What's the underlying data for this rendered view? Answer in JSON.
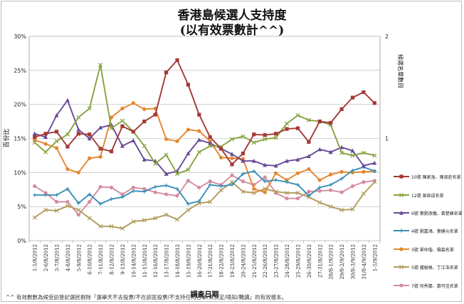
{
  "title": "香港島候選人支持度",
  "subtitle": "(以有效票數計^^)",
  "footnote": "^^ 有效數數為候受訪登記選民剔除「選舉天不去投票/不在該區投票/不支持任何名單/未決定/唔知/難講」的有效樣本。",
  "chart_data": {
    "type": "line",
    "title": "香港島候選人支持度",
    "subtitle": "(以有效票數計^^)",
    "xlabel": "調查日期",
    "ylabel": "百份比",
    "ylabel_right": "候選名單數目",
    "ylim": [
      0,
      30
    ],
    "yticks": [
      "0%",
      "5%",
      "10%",
      "15%",
      "20%",
      "25%",
      "30%"
    ],
    "ylim_right": [
      0,
      2
    ],
    "yticks_right": [
      "0",
      "1",
      "2"
    ],
    "grid": true,
    "legend_position": "right",
    "categories": [
      "1-5/8/2012",
      "2-6/8/2012",
      "3-7/8/2012",
      "4-8/8/2012",
      "5-9/8/2012",
      "6-10/8/2012",
      "7-11/8/2012",
      "8-12/8/2012",
      "9-13/8/2012",
      "10-14/8/2012",
      "11-15/8/2012",
      "12-16/8/2012",
      "13-17/8/2012",
      "14-18/8/2012",
      "15-19/8/2012",
      "16-20/8/2012",
      "17-21/8/2012",
      "18-22/8/2012",
      "19-23/8/2012",
      "20-24/8/2012",
      "21-25/8/2012",
      "22-26/8/2012",
      "23-27/8/2012",
      "24-28/8/2012",
      "25-29/8/2012",
      "26-30/8/2012",
      "27-31/8/2012",
      "28/8-1/9/2012",
      "29/8-2/9/2012",
      "30/8-3/9/2012",
      "31/8-4/9/2012",
      "1-5/9/2012"
    ],
    "x_labels_shown": [
      "1-5/8/2012",
      "2-6/8/2012",
      "3-7/8/2012",
      "4-8/8/2012",
      "5-9/8/2012",
      "6-10/8/2012",
      "7-11/8/2012",
      "8-12/8/2012",
      "9-13/8/2012",
      "10-14/8/2012",
      "11-15/8/2012",
      "12-16/8/2012",
      "13-17/8/2012",
      "14-18/8/2012",
      "15-19/8/2012",
      "16-20/8/2012",
      "17-21/8/2012",
      "18-22/8/2012",
      "19-23/8/2012",
      "20-24/8/2012",
      "21-25/8/2012",
      "22-26/8/2012",
      "23-27/8/2012",
      "24-28/8/2012",
      "25-29/8/2012",
      "26-30/8/2012",
      "27-31/8/2012",
      "28/8-1/9/2012",
      "29/8-2/9/2012",
      "30/8-3/9/2012",
      "31/8-4/9/2012",
      "1-5/9/2012"
    ],
    "series": [
      {
        "name": "10號 陳家洛、陳淑莊名單",
        "color": "#a33a36",
        "marker": "square",
        "values": [
          15.2,
          15.7,
          16.0,
          13.8,
          15.7,
          15.6,
          13.5,
          13.1,
          16.8,
          16.0,
          17.5,
          18.5,
          24.7,
          26.5,
          22.9,
          18.5,
          15.2,
          13.5,
          11.2,
          12.8,
          15.6,
          15.5,
          15.7,
          16.4,
          16.5,
          14.5,
          17.5,
          17.3,
          19.3,
          21.0,
          21.8,
          20.2
        ]
      },
      {
        "name": "12號 曾鈺成名單",
        "color": "#85a33f",
        "marker": "x",
        "values": [
          14.4,
          13.0,
          14.6,
          15.6,
          18.1,
          19.4,
          25.8,
          16.5,
          17.6,
          16.0,
          13.9,
          11.3,
          12.6,
          9.8,
          10.4,
          13.0,
          13.9,
          13.8,
          14.9,
          15.3,
          14.4,
          14.9,
          15.1,
          17.2,
          18.4,
          17.7,
          17.5,
          17.0,
          12.9,
          12.5,
          12.9,
          12.5
        ]
      },
      {
        "name": "9號 葉劉淑儀、黃楚峰名單",
        "color": "#6a4a97",
        "marker": "triangle",
        "values": [
          15.7,
          15.2,
          18.4,
          20.6,
          16.3,
          15.0,
          16.6,
          17.0,
          13.9,
          14.7,
          11.9,
          11.7,
          9.8,
          10.2,
          12.8,
          14.8,
          14.3,
          13.5,
          12.7,
          11.7,
          11.7,
          11.1,
          11.0,
          11.7,
          11.9,
          12.4,
          13.4,
          13.0,
          13.7,
          13.2,
          11.0,
          11.4
        ]
      },
      {
        "name": "4號 劉嘉鴻、葉健元名單",
        "color": "#3a8fb7",
        "marker": "plus",
        "values": [
          6.7,
          6.7,
          6.7,
          7.6,
          5.5,
          6.8,
          5.4,
          6.1,
          6.4,
          7.3,
          7.2,
          7.9,
          8.1,
          7.6,
          5.4,
          5.8,
          8.2,
          8.0,
          8.2,
          9.8,
          10.2,
          8.7,
          8.9,
          8.6,
          8.2,
          6.6,
          7.8,
          8.2,
          9.1,
          10.3,
          10.8,
          10.2
        ]
      },
      {
        "name": "3號 單仲偕、楊森名單",
        "color": "#e5862e",
        "marker": "circle",
        "values": [
          14.8,
          14.2,
          13.6,
          10.5,
          10.0,
          12.1,
          12.3,
          18.1,
          19.4,
          20.2,
          19.3,
          19.4,
          14.9,
          14.6,
          16.3,
          16.1,
          14.6,
          12.2,
          12.1,
          12.0,
          7.6,
          7.1,
          9.9,
          8.9,
          9.9,
          10.5,
          8.9,
          9.7,
          10.1,
          10.0,
          10.1,
          10.2
        ]
      },
      {
        "name": "5號 鍾樹根、丁江浩名單",
        "color": "#b19b5d",
        "marker": "x",
        "values": [
          3.4,
          4.5,
          4.4,
          5.1,
          4.5,
          3.3,
          2.1,
          2.1,
          1.8,
          2.8,
          3.0,
          3.3,
          3.8,
          3.1,
          4.5,
          5.5,
          5.7,
          7.4,
          8.6,
          7.2,
          7.0,
          7.6,
          7.2,
          7.0,
          7.0,
          6.4,
          5.6,
          5.0,
          4.5,
          4.6,
          6.9,
          8.6
        ]
      },
      {
        "name": "7號 何秀蘭、蕭可佳名單",
        "color": "#d48ba0",
        "marker": "circle",
        "values": [
          8.0,
          7.0,
          5.7,
          5.7,
          3.8,
          5.7,
          7.9,
          7.8,
          6.8,
          7.8,
          7.6,
          7.1,
          6.8,
          6.6,
          8.8,
          7.8,
          8.7,
          8.2,
          9.6,
          8.7,
          8.2,
          9.3,
          7.0,
          6.2,
          6.2,
          7.2,
          7.3,
          7.4,
          7.1,
          8.0,
          8.6,
          8.8
        ]
      }
    ]
  }
}
